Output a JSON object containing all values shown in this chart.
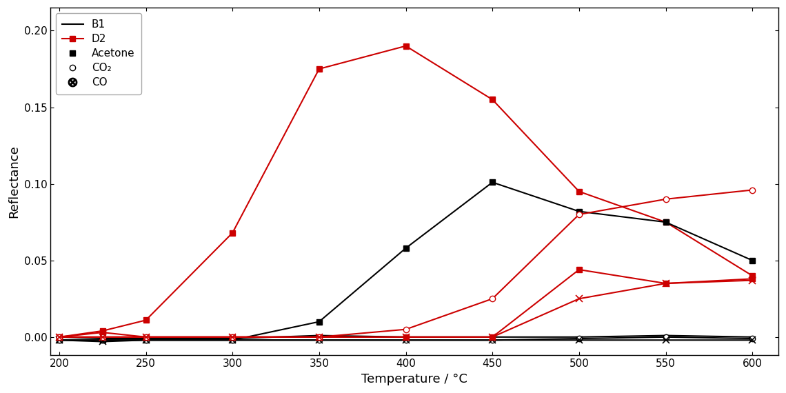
{
  "temperatures": [
    200,
    225,
    250,
    300,
    350,
    400,
    450,
    500,
    550,
    600
  ],
  "B1": [
    0.0,
    -0.001,
    -0.001,
    -0.001,
    0.001,
    0.0,
    0.0,
    0.0,
    0.001,
    0.0
  ],
  "D2": [
    0.0,
    0.004,
    0.011,
    0.068,
    0.175,
    0.19,
    0.155,
    0.095,
    0.075,
    0.04
  ],
  "Acetone_black": [
    -0.002,
    -0.002,
    -0.002,
    -0.002,
    0.01,
    0.058,
    0.101,
    0.082,
    0.075,
    0.05
  ],
  "CO2_black": [
    -0.002,
    -0.002,
    -0.002,
    -0.002,
    -0.002,
    -0.002,
    -0.002,
    -0.001,
    0.0,
    -0.001
  ],
  "CO_black": [
    -0.002,
    -0.003,
    -0.002,
    -0.002,
    -0.002,
    -0.002,
    -0.002,
    -0.002,
    -0.002,
    -0.002
  ],
  "Acetone_red": [
    0.0,
    0.003,
    0.0,
    0.0,
    0.0,
    0.0,
    0.0,
    0.044,
    0.035,
    0.038
  ],
  "CO2_red": [
    0.0,
    0.0,
    0.0,
    0.0,
    0.0,
    0.005,
    0.025,
    0.08,
    0.09,
    0.096
  ],
  "CO_red": [
    0.0,
    0.0,
    0.0,
    0.0,
    0.0,
    0.0,
    0.0,
    0.025,
    0.035,
    0.037
  ],
  "xlabel": "Temperature / °C",
  "ylabel": "Reflectance",
  "xlim": [
    195,
    615
  ],
  "ylim": [
    -0.012,
    0.215
  ],
  "xticks": [
    200,
    250,
    300,
    350,
    400,
    450,
    500,
    550,
    600
  ],
  "yticks": [
    0.0,
    0.05,
    0.1,
    0.15,
    0.2
  ],
  "line_color_black": "#000000",
  "line_color_red": "#cc0000",
  "legend_entries": [
    "B1",
    "D2",
    "Acetone",
    "CO₂",
    "CO"
  ],
  "markersize": 6,
  "linewidth": 1.5
}
